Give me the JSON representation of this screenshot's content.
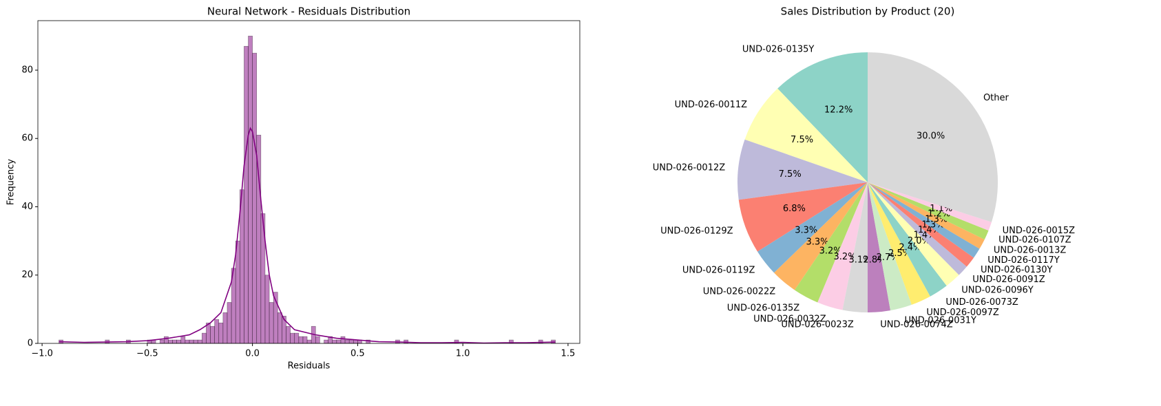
{
  "chart_data": [
    {
      "type": "histogram",
      "title": "Neural Network - Residuals Distribution",
      "xlabel": "Residuals",
      "ylabel": "Frequency",
      "bins": [
        -0.92,
        -0.9,
        -0.88,
        -0.86,
        -0.84,
        -0.82,
        -0.8,
        -0.78,
        -0.76,
        -0.74,
        -0.72,
        -0.7,
        -0.68,
        -0.66,
        -0.64,
        -0.62,
        -0.6,
        -0.58,
        -0.56,
        -0.54,
        -0.52,
        -0.5,
        -0.48,
        -0.46,
        -0.44,
        -0.42,
        -0.4,
        -0.38,
        -0.36,
        -0.34,
        -0.32,
        -0.3,
        -0.28,
        -0.26,
        -0.24,
        -0.22,
        -0.2,
        -0.18,
        -0.16,
        -0.14,
        -0.12,
        -0.1,
        -0.08,
        -0.06,
        -0.04,
        -0.02,
        0.0,
        0.02,
        0.04,
        0.06,
        0.08,
        0.1,
        0.12,
        0.14,
        0.16,
        0.18,
        0.2,
        0.22,
        0.24,
        0.26,
        0.28,
        0.3,
        0.32,
        0.34,
        0.36,
        0.38,
        0.4,
        0.42,
        0.44,
        0.46,
        0.48,
        0.5,
        0.52,
        0.54,
        0.56,
        0.58,
        0.6,
        0.62,
        0.64,
        0.66,
        0.68,
        0.7,
        0.72,
        0.74,
        0.76,
        0.78,
        0.8,
        0.82,
        0.84,
        0.86,
        0.88,
        0.9,
        0.92,
        0.94,
        0.96,
        0.98,
        1.0,
        1.02,
        1.04,
        1.06,
        1.08,
        1.1,
        1.12,
        1.14,
        1.16,
        1.18,
        1.2,
        1.22,
        1.24,
        1.26,
        1.28,
        1.3,
        1.32,
        1.34,
        1.36,
        1.38,
        1.4,
        1.42,
        1.44
      ],
      "counts": [
        1,
        0,
        0,
        0,
        0,
        0,
        0,
        0,
        0,
        0,
        0,
        1,
        0,
        0,
        0,
        0,
        1,
        0,
        0,
        0,
        0,
        1,
        1,
        0,
        1,
        2,
        1,
        1,
        1,
        2,
        1,
        1,
        1,
        1,
        3,
        6,
        5,
        7,
        6,
        9,
        12,
        22,
        30,
        45,
        87,
        90,
        85,
        61,
        38,
        20,
        12,
        15,
        9,
        8,
        5,
        3,
        3,
        2,
        2,
        1,
        5,
        2,
        0,
        1,
        2,
        1,
        1,
        2,
        1,
        1,
        1,
        1,
        0,
        1,
        0,
        0,
        0,
        0,
        0,
        0,
        1,
        0,
        1,
        0,
        0,
        0,
        0,
        0,
        0,
        0,
        0,
        0,
        0,
        0,
        1,
        0,
        0,
        0,
        0,
        0,
        0,
        0,
        0,
        0,
        0,
        0,
        0,
        1,
        0,
        0,
        0,
        0,
        0,
        0,
        1,
        0,
        0,
        1
      ],
      "color": "#800080",
      "kde": {
        "x": [
          -0.92,
          -0.8,
          -0.7,
          -0.6,
          -0.5,
          -0.4,
          -0.3,
          -0.25,
          -0.2,
          -0.15,
          -0.1,
          -0.08,
          -0.06,
          -0.04,
          -0.02,
          -0.01,
          0,
          0.02,
          0.04,
          0.06,
          0.08,
          0.1,
          0.15,
          0.2,
          0.3,
          0.4,
          0.5,
          0.6,
          0.7,
          0.8,
          0.9,
          1.0,
          1.1,
          1.2,
          1.3,
          1.44
        ],
        "values": [
          0.5,
          0.3,
          0.4,
          0.5,
          0.8,
          1.5,
          2.5,
          4,
          6,
          9,
          18,
          26,
          38,
          52,
          61,
          63,
          62,
          55,
          42,
          30,
          20,
          14,
          7,
          4,
          2.5,
          1.5,
          1,
          0.5,
          0.4,
          0.2,
          0.2,
          0.3,
          0.1,
          0.2,
          0.2,
          0.4
        ],
        "color": "#800080"
      },
      "xlim": [
        -1.02,
        1.556
      ],
      "ylim": [
        0,
        94.5
      ],
      "xticks": [
        {
          "value": -1,
          "label": "−1.0"
        },
        {
          "value": -0.5,
          "label": "−0.5"
        },
        {
          "value": 0,
          "label": "0.0"
        },
        {
          "value": 0.5,
          "label": "0.5"
        },
        {
          "value": 1,
          "label": "1.0"
        },
        {
          "value": 1.5,
          "label": "1.5"
        }
      ],
      "yticks": [
        0,
        20,
        40,
        60,
        80
      ]
    },
    {
      "type": "pie",
      "title": "Sales Distribution by Product (20)",
      "startangle": 90,
      "categories": [
        "UND-026-0135Y",
        "UND-026-0011Z",
        "UND-026-0012Z",
        "UND-026-0129Z",
        "UND-026-0119Z",
        "UND-026-0022Z",
        "UND-026-0135Z",
        "UND-026-0032Z",
        "UND-026-0023Z",
        "UND-026-0074Z",
        "UND-026-0031Y",
        "UND-026-0097Z",
        "UND-026-0073Z",
        "UND-026-0096Y",
        "UND-026-0091Z",
        "UND-026-0130Y",
        "UND-026-0117Y",
        "UND-026-0013Z",
        "UND-026-0107Z",
        "UND-026-0015Z",
        "Other"
      ],
      "values": [
        12.2,
        7.5,
        7.5,
        6.8,
        3.3,
        3.3,
        3.2,
        3.2,
        3.1,
        2.8,
        2.7,
        2.5,
        2.4,
        2.0,
        1.4,
        1.4,
        1.3,
        1.3,
        1.2,
        1.1,
        30.0
      ],
      "value_labels": [
        "12.2%",
        "7.5%",
        "7.5%",
        "6.8%",
        "3.3%",
        "3.3%",
        "3.2%",
        "3.2%",
        "3.1%",
        "2.8%",
        "2.7%",
        "2.5%",
        "2.4%",
        "2.0%",
        "1.4%",
        "1.4%",
        "1.3%",
        "1.3%",
        "1.2%",
        "1.1%",
        "30.0%"
      ],
      "colors": [
        "#8dd3c7",
        "#ffffb3",
        "#bebada",
        "#fb8072",
        "#80b1d3",
        "#fdb462",
        "#b3de69",
        "#fccde5",
        "#d9d9d9",
        "#bc80bd",
        "#ccebc5",
        "#ffed6f",
        "#8dd3c7",
        "#ffffb3",
        "#bebada",
        "#fb8072",
        "#80b1d3",
        "#fdb462",
        "#b3de69",
        "#fccde5",
        "#d9d9d9"
      ]
    }
  ]
}
